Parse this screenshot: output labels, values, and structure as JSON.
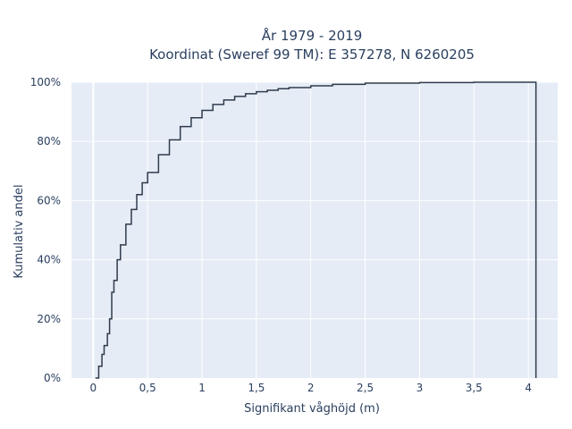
{
  "chart_data": {
    "type": "line",
    "title_lines": [
      "År 1979 - 2019",
      "Koordinat (Sweref 99 TM): E 357278, N 6260205"
    ],
    "xlabel": "Signifikant våghöjd (m)",
    "ylabel": "Kumulativ andel",
    "xlim": [
      -0.2,
      4.27
    ],
    "ylim": [
      0,
      100
    ],
    "x_ticks": [
      0,
      0.5,
      1,
      1.5,
      2,
      2.5,
      3,
      3.5,
      4
    ],
    "x_tick_labels": [
      "0",
      "0,5",
      "1",
      "1,5",
      "2",
      "2,5",
      "3",
      "3,5",
      "4"
    ],
    "y_ticks": [
      0,
      20,
      40,
      60,
      80,
      100
    ],
    "y_tick_labels": [
      "0%",
      "20%",
      "40%",
      "60%",
      "80%",
      "100%"
    ],
    "grid": true,
    "series": [
      {
        "color": "#2f3b4c",
        "shape": "step",
        "x": [
          0.02,
          0.05,
          0.08,
          0.1,
          0.13,
          0.15,
          0.17,
          0.19,
          0.22,
          0.25,
          0.3,
          0.35,
          0.4,
          0.45,
          0.5,
          0.6,
          0.7,
          0.8,
          0.9,
          1.0,
          1.1,
          1.2,
          1.3,
          1.4,
          1.5,
          1.6,
          1.7,
          1.8,
          2.0,
          2.2,
          2.5,
          3.0,
          3.5,
          4.0,
          4.07,
          4.07
        ],
        "y": [
          0,
          4,
          8,
          11,
          15,
          20,
          29,
          33,
          40,
          45,
          52,
          57,
          62,
          66,
          69.5,
          75.5,
          80.5,
          85,
          88,
          90.5,
          92.5,
          94,
          95.2,
          96.1,
          96.8,
          97.3,
          97.8,
          98.2,
          98.8,
          99.3,
          99.7,
          99.9,
          100,
          100,
          100,
          0
        ]
      }
    ]
  }
}
